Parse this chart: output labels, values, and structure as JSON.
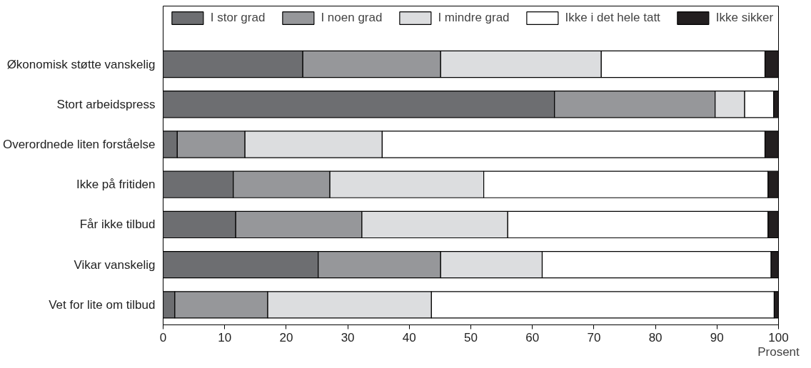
{
  "chart_data": {
    "type": "bar",
    "orientation": "horizontal",
    "stacked": true,
    "xlabel": "Prosent",
    "categories": [
      "Økonomisk støtte vanskelig",
      "Stort arbeidspress",
      "Overordnede liten forståelse",
      "Ikke på fritiden",
      "Får ikke tilbud",
      "Vikar vanskelig",
      "Vet for lite om tilbud"
    ],
    "series": [
      {
        "name": "I stor grad",
        "color": "#6d6e71",
        "values": [
          22.7,
          63.6,
          2.3,
          11.4,
          11.8,
          25.2,
          1.9
        ]
      },
      {
        "name": "I noen grad",
        "color": "#96979a",
        "values": [
          22.4,
          26.1,
          11.0,
          15.7,
          20.5,
          19.9,
          15.1
        ]
      },
      {
        "name": "I mindre grad",
        "color": "#dcdddf",
        "values": [
          26.1,
          4.8,
          22.3,
          25.0,
          23.7,
          16.5,
          26.6
        ]
      },
      {
        "name": "Ikke i det hele tatt",
        "color": "#ffffff",
        "values": [
          26.6,
          4.7,
          62.2,
          46.2,
          42.3,
          37.2,
          55.7
        ]
      },
      {
        "name": "Ikke sikker",
        "color": "#231f20",
        "values": [
          2.2,
          0.8,
          2.2,
          1.7,
          1.7,
          1.2,
          0.7
        ]
      }
    ],
    "xlim": [
      0,
      100
    ],
    "xticks": [
      0,
      10,
      20,
      30,
      40,
      50,
      60,
      70,
      80,
      90,
      100
    ],
    "grid": false,
    "legend": "top"
  }
}
